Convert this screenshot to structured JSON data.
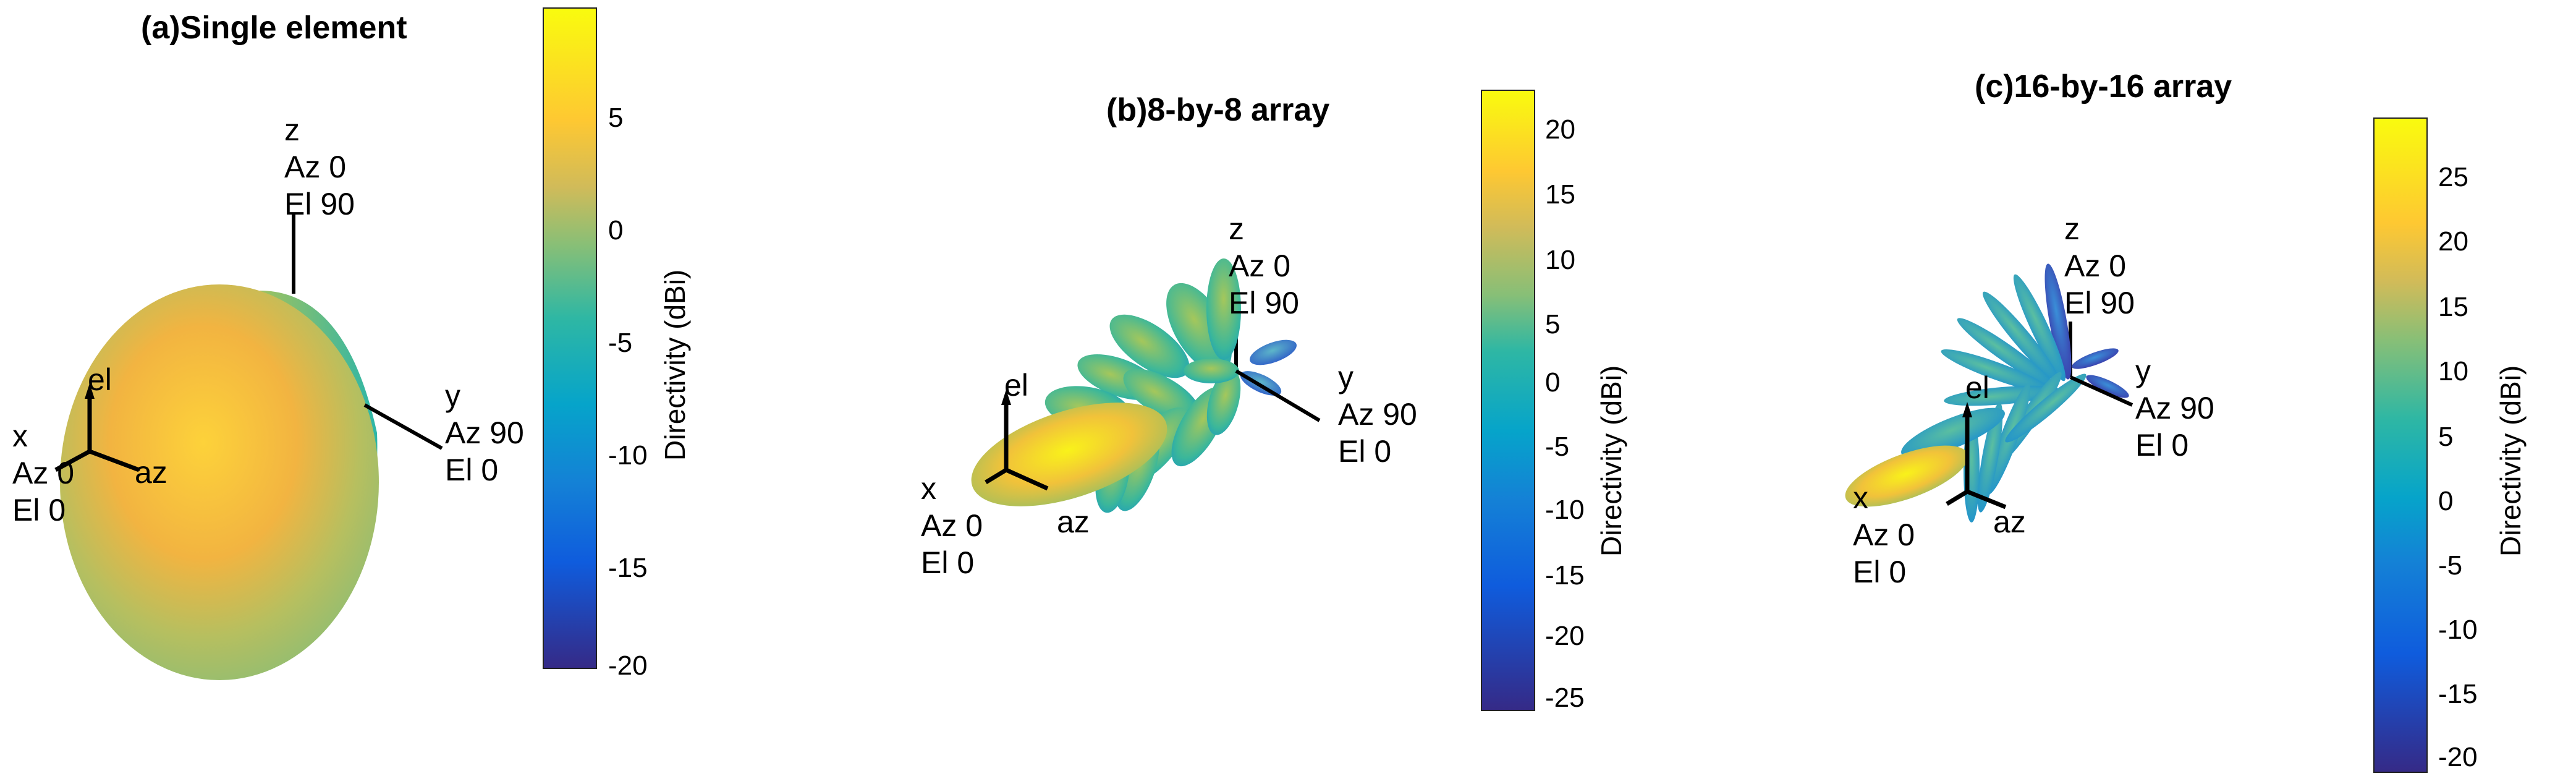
{
  "panels": [
    {
      "title": "(a)Single element",
      "z_label": "z\nAz 0\nEl 90",
      "y_label": "y\nAz 90\nEl 0",
      "x_label": "x\nAz 0\nEl 0",
      "el_label": "el",
      "az_label": "az",
      "colorbar": {
        "label": "Directivity (dBi)",
        "ticks": [
          "5",
          "0",
          "-5",
          "-10",
          "-15",
          "-20"
        ],
        "min": -20,
        "max": 9.5
      }
    },
    {
      "title": "(b)8-by-8 array",
      "z_label": "z\nAz 0\nEl 90",
      "y_label": "y\nAz 90\nEl 0",
      "x_label": "x\nAz 0\nEl 0",
      "el_label": "el",
      "az_label": "az",
      "colorbar": {
        "label": "Directivity (dBi)",
        "ticks": [
          "20",
          "15",
          "10",
          "5",
          "0",
          "-5",
          "-10",
          "-15",
          "-20",
          "-25"
        ],
        "min": -26.5,
        "max": 23.5
      }
    },
    {
      "title": "(c)16-by-16 array",
      "z_label": "z\nAz 0\nEl 90",
      "y_label": "y\nAz 90\nEl 0",
      "x_label": "x\nAz 0\nEl 0",
      "el_label": "el",
      "az_label": "az",
      "colorbar": {
        "label": "Directivity (dBi)",
        "ticks": [
          "25",
          "20",
          "15",
          "10",
          "5",
          "0",
          "-5",
          "-10",
          "-15",
          "-20"
        ],
        "min": -21,
        "max": 29.5
      }
    }
  ],
  "colors": {
    "parula": [
      "#352a87",
      "#0f5cdd",
      "#1481d6",
      "#06a4ca",
      "#2eb7a4",
      "#87bf77",
      "#d1bb59",
      "#fec832",
      "#f9fb0e"
    ]
  }
}
